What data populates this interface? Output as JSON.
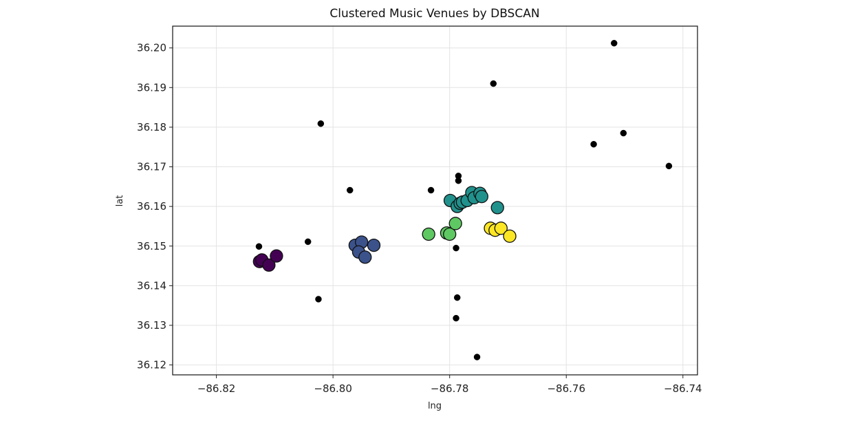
{
  "chart_data": {
    "type": "scatter",
    "title": "Clustered Music Venues by DBSCAN",
    "xlabel": "lng",
    "ylabel": "lat",
    "xlim": [
      -86.8275,
      -86.7375
    ],
    "ylim": [
      36.1175,
      36.2055
    ],
    "grid": true,
    "xticks": [
      -86.82,
      -86.8,
      -86.78,
      -86.76,
      -86.74
    ],
    "xtick_labels": [
      "−86.82",
      "−86.80",
      "−86.78",
      "−86.76",
      "−86.74"
    ],
    "yticks": [
      36.12,
      36.13,
      36.14,
      36.15,
      36.16,
      36.17,
      36.18,
      36.19,
      36.2
    ],
    "ytick_labels": [
      "36.12",
      "36.13",
      "36.14",
      "36.15",
      "36.16",
      "36.17",
      "36.18",
      "36.19",
      "36.20"
    ],
    "cluster_colors": [
      "#440154",
      "#3b528b",
      "#21918c",
      "#5ec962",
      "#fde725"
    ],
    "noise_color": "#000000",
    "series": [
      {
        "cluster": 0,
        "color": "#440154",
        "points": [
          {
            "x": -86.8126,
            "y": 36.1461
          },
          {
            "x": -86.8122,
            "y": 36.1465
          },
          {
            "x": -86.811,
            "y": 36.1452
          },
          {
            "x": -86.8097,
            "y": 36.1475
          }
        ]
      },
      {
        "cluster": 1,
        "color": "#3b528b",
        "points": [
          {
            "x": -86.7962,
            "y": 36.1502
          },
          {
            "x": -86.7951,
            "y": 36.151
          },
          {
            "x": -86.7956,
            "y": 36.1485
          },
          {
            "x": -86.7945,
            "y": 36.1472
          },
          {
            "x": -86.793,
            "y": 36.1502
          }
        ]
      },
      {
        "cluster": 2,
        "color": "#21918c",
        "points": [
          {
            "x": -86.7799,
            "y": 36.1615
          },
          {
            "x": -86.7787,
            "y": 36.16
          },
          {
            "x": -86.7782,
            "y": 36.1608
          },
          {
            "x": -86.7778,
            "y": 36.1611
          },
          {
            "x": -86.777,
            "y": 36.1615
          },
          {
            "x": -86.7762,
            "y": 36.1635
          },
          {
            "x": -86.7758,
            "y": 36.1622
          },
          {
            "x": -86.7748,
            "y": 36.1633
          },
          {
            "x": -86.7745,
            "y": 36.1625
          },
          {
            "x": -86.7718,
            "y": 36.1597
          }
        ]
      },
      {
        "cluster": 3,
        "color": "#5ec962",
        "points": [
          {
            "x": -86.7836,
            "y": 36.153
          },
          {
            "x": -86.7805,
            "y": 36.1533
          },
          {
            "x": -86.78,
            "y": 36.153
          },
          {
            "x": -86.779,
            "y": 36.1557
          }
        ]
      },
      {
        "cluster": 4,
        "color": "#fde725",
        "points": [
          {
            "x": -86.773,
            "y": 36.1545
          },
          {
            "x": -86.7722,
            "y": 36.154
          },
          {
            "x": -86.7712,
            "y": 36.1545
          },
          {
            "x": -86.7697,
            "y": 36.1525
          }
        ]
      },
      {
        "cluster": -1,
        "name_hidden": true,
        "color": "#000000",
        "noise": true,
        "points": [
          {
            "x": -86.8127,
            "y": 36.1499
          },
          {
            "x": -86.8043,
            "y": 36.1511
          },
          {
            "x": -86.8025,
            "y": 36.1366
          },
          {
            "x": -86.8021,
            "y": 36.1809
          },
          {
            "x": -86.7971,
            "y": 36.1641
          },
          {
            "x": -86.7832,
            "y": 36.1641
          },
          {
            "x": -86.7785,
            "y": 36.1677
          },
          {
            "x": -86.7785,
            "y": 36.1665
          },
          {
            "x": -86.7789,
            "y": 36.1495
          },
          {
            "x": -86.7787,
            "y": 36.137
          },
          {
            "x": -86.7789,
            "y": 36.1318
          },
          {
            "x": -86.7753,
            "y": 36.122
          },
          {
            "x": -86.7725,
            "y": 36.191
          },
          {
            "x": -86.7553,
            "y": 36.1757
          },
          {
            "x": -86.7518,
            "y": 36.2012
          },
          {
            "x": -86.7502,
            "y": 36.1785
          },
          {
            "x": -86.7424,
            "y": 36.1702
          }
        ]
      }
    ]
  }
}
